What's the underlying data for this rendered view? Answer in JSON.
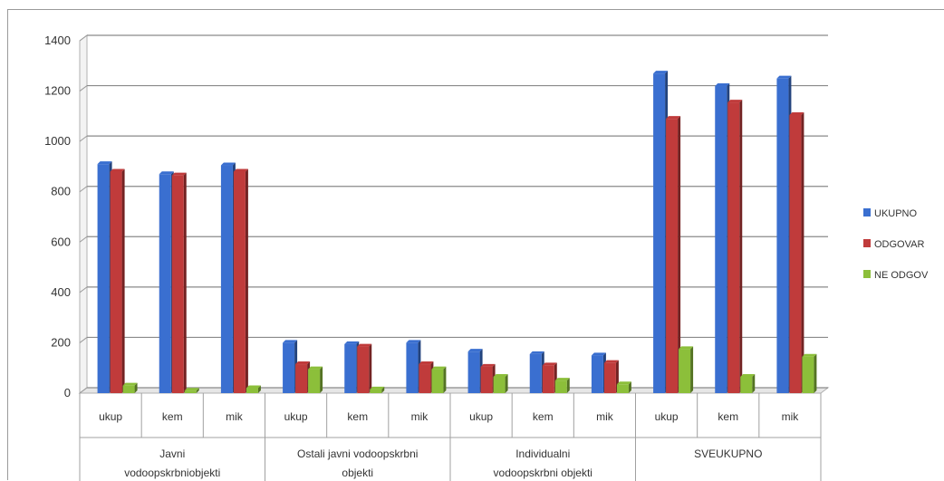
{
  "chart_data": {
    "type": "bar",
    "title": "",
    "xlabel": "",
    "ylabel": "",
    "ylim": [
      0,
      1400
    ],
    "yticks": [
      0,
      200,
      400,
      600,
      800,
      1000,
      1200,
      1400
    ],
    "grid": true,
    "legend_position": "right",
    "groups": [
      {
        "label_lines": [
          "Javni",
          "vodoopskrbniobjekti"
        ],
        "categories": [
          "ukup",
          "kem",
          "mik"
        ]
      },
      {
        "label_lines": [
          "Ostali javni vodoopskrbni",
          "objekti"
        ],
        "categories": [
          "ukup",
          "kem",
          "mik"
        ]
      },
      {
        "label_lines": [
          "Individualni",
          "vodoopskrbni objekti"
        ],
        "categories": [
          "ukup",
          "kem",
          "mik"
        ]
      },
      {
        "label_lines": [
          "SVEUKUPNO"
        ],
        "categories": [
          "ukup",
          "kem",
          "mik"
        ]
      }
    ],
    "categories": [
      "ukup",
      "kem",
      "mik",
      "ukup",
      "kem",
      "mik",
      "ukup",
      "kem",
      "mik",
      "ukup",
      "kem",
      "mik"
    ],
    "series": [
      {
        "name": "UKUPNO",
        "color": "#3a6fd0",
        "values": [
          910,
          870,
          905,
          200,
          195,
          200,
          165,
          155,
          150,
          1270,
          1220,
          1250
        ]
      },
      {
        "name": "ODGOVAR",
        "color": "#c03b3b",
        "values": [
          880,
          865,
          880,
          115,
          185,
          115,
          105,
          110,
          120,
          1090,
          1155,
          1105
        ]
      },
      {
        "name": "NE ODGOV",
        "color": "#8cbf3a",
        "values": [
          30,
          10,
          20,
          95,
          15,
          95,
          65,
          50,
          35,
          175,
          65,
          145
        ]
      }
    ]
  }
}
